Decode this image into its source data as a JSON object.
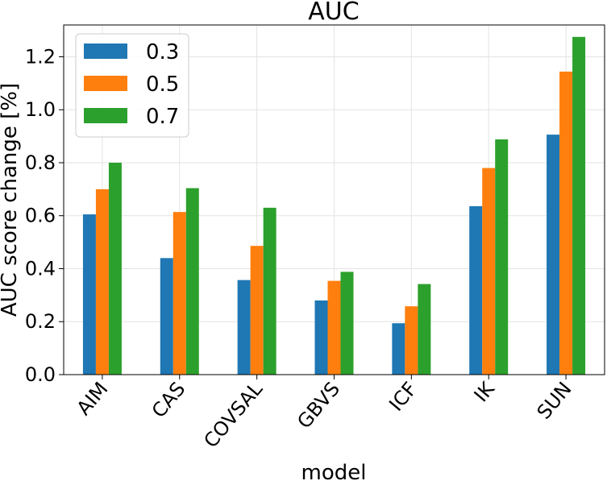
{
  "chart_data": {
    "type": "bar",
    "title": "AUC",
    "xlabel": "model",
    "ylabel": "AUC score change [%]",
    "categories": [
      "AIM",
      "CAS",
      "COVSAL",
      "GBVS",
      "ICF",
      "IK",
      "SUN"
    ],
    "series": [
      {
        "name": "0.3",
        "color": "#1f77b4",
        "values": [
          0.605,
          0.44,
          0.357,
          0.28,
          0.194,
          0.636,
          0.906
        ]
      },
      {
        "name": "0.5",
        "color": "#ff7f0e",
        "values": [
          0.7,
          0.614,
          0.486,
          0.354,
          0.258,
          0.78,
          1.144
        ]
      },
      {
        "name": "0.7",
        "color": "#2ca02c",
        "values": [
          0.8,
          0.704,
          0.63,
          0.388,
          0.342,
          0.888,
          1.275
        ]
      }
    ],
    "yticks": [
      "0.0",
      "0.2",
      "0.4",
      "0.6",
      "0.8",
      "1.0",
      "1.2"
    ],
    "ylim": [
      0,
      1.32
    ],
    "grid": true,
    "legend_position": "top-left"
  }
}
